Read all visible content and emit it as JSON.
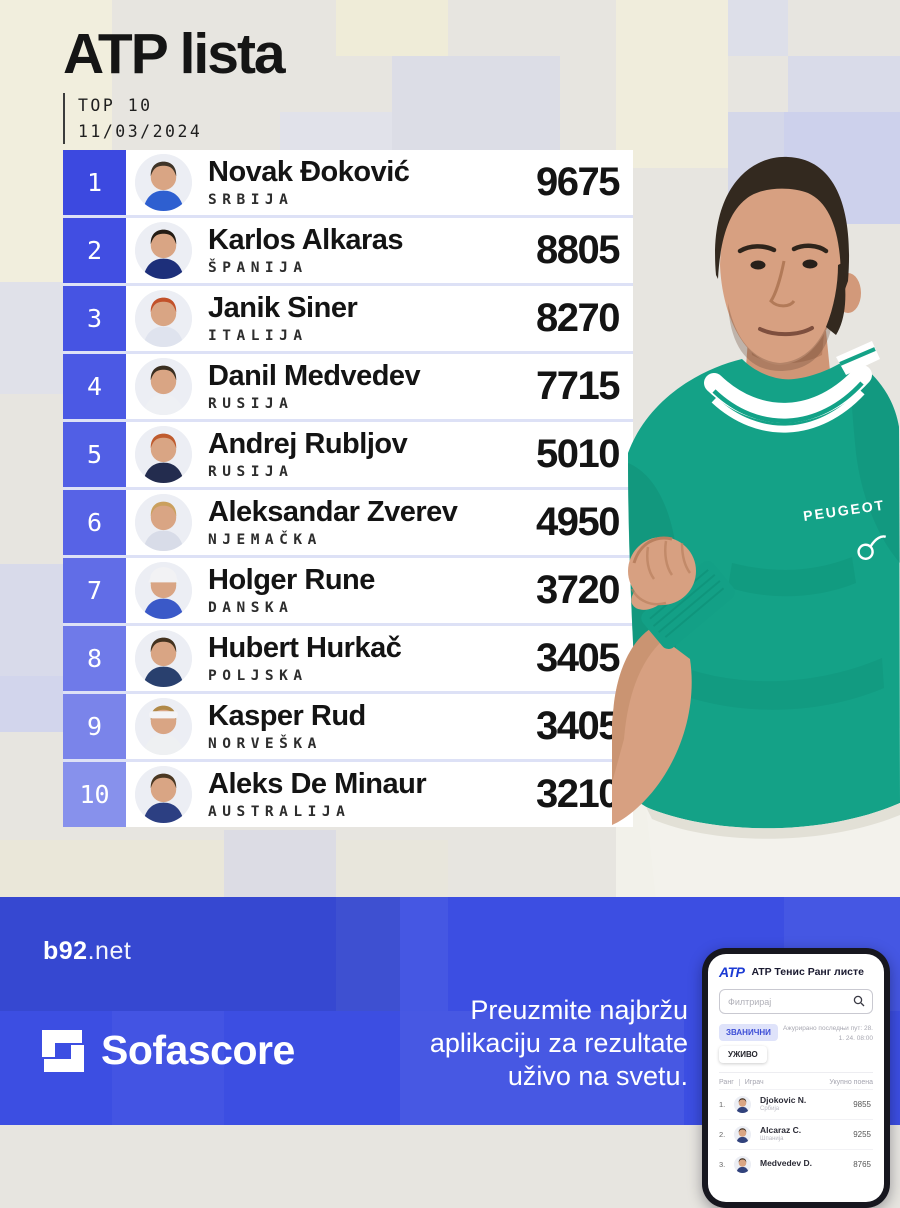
{
  "header": {
    "title": "ATP lista",
    "subtitle_line1": "TOP 10",
    "subtitle_line2": "11/03/2024"
  },
  "table": {
    "rows": [
      {
        "rank": "1",
        "name": "Novak Đoković",
        "country": "SRBIJA",
        "points": "9675",
        "rank_color": "#3c49e0",
        "avatar": {
          "hair": "#3f3428",
          "shirt": "#2e5fd0",
          "accessory": "none"
        }
      },
      {
        "rank": "2",
        "name": "Karlos Alkaras",
        "country": "ŠPANIJA",
        "points": "8805",
        "rank_color": "#414ee2",
        "avatar": {
          "hair": "#241c14",
          "shirt": "#1d2f7a",
          "accessory": "none"
        }
      },
      {
        "rank": "3",
        "name": "Janik Siner",
        "country": "ITALIJA",
        "points": "8270",
        "rank_color": "#4654e3",
        "avatar": {
          "hair": "#c2512a",
          "shirt": "#dfe3ee",
          "accessory": "none"
        }
      },
      {
        "rank": "4",
        "name": "Danil Medvedev",
        "country": "RUSIJA",
        "points": "7715",
        "rank_color": "#4b59e4",
        "avatar": {
          "hair": "#3a2e20",
          "shirt": "#eef0f4",
          "accessory": "none"
        }
      },
      {
        "rank": "5",
        "name": "Andrej Rubljov",
        "country": "RUSIJA",
        "points": "5010",
        "rank_color": "#515fe5",
        "avatar": {
          "hair": "#bf5b2e",
          "shirt": "#232c4e",
          "accessory": "none"
        }
      },
      {
        "rank": "6",
        "name": "Aleksandar Zverev",
        "country": "NJEMAČKA",
        "points": "4950",
        "rank_color": "#5763e6",
        "avatar": {
          "hair": "#caa05e",
          "shirt": "#d8dce8",
          "accessory": "none"
        }
      },
      {
        "rank": "7",
        "name": "Holger Rune",
        "country": "DANSKA",
        "points": "3720",
        "rank_color": "#616de7",
        "avatar": {
          "hair": "#c9a45c",
          "shirt": "#3a59c8",
          "accessory": "cap"
        }
      },
      {
        "rank": "8",
        "name": "Hubert Hurkač",
        "country": "POLJSKA",
        "points": "3405",
        "rank_color": "#6f7ae9",
        "avatar": {
          "hair": "#43321f",
          "shirt": "#29406e",
          "accessory": "none"
        }
      },
      {
        "rank": "9",
        "name": "Kasper Rud",
        "country": "NORVEŠKA",
        "points": "3405",
        "rank_color": "#7a84ea",
        "avatar": {
          "hair": "#b08948",
          "shirt": "#eef0f2",
          "accessory": "headband"
        }
      },
      {
        "rank": "10",
        "name": "Aleks De Minaur",
        "country": "AUSTRALIJA",
        "points": "3210",
        "rank_color": "#8791ec",
        "avatar": {
          "hair": "#4a3722",
          "shirt": "#2c3f82",
          "accessory": "none"
        }
      }
    ]
  },
  "athlete": {
    "sleeve_brand": "PEUGEOT",
    "shirt_color": "#14a287",
    "skin_color": "#d7a081",
    "hair_color": "#33291f"
  },
  "footer": {
    "b92_logo_main": "b92",
    "b92_logo_suffix": ".net",
    "sofascore_logo": "Sofascore",
    "tagline_lines": [
      "Preuzmite najbržu",
      "aplikaciju za rezultate",
      "uživo na svetu."
    ],
    "accent_blue": "#3c4ee2",
    "phone": {
      "app_logo": "ATP",
      "app_title": "ATP Тенис Ранг листе",
      "search_placeholder": "Филтрирај",
      "tab_official": "ЗВАНИЧНИ",
      "tab_live": "УЖИВО",
      "updated_line1": "Ажурирано последњи пут: 28.",
      "updated_line2": "1. 24. 08:00",
      "col_rank": "Ранг",
      "col_player": "Играч",
      "col_points": "Укупно поена",
      "rows": [
        {
          "rank": "1.",
          "name": "Djokovic N.",
          "country": "Србија",
          "points": "9855"
        },
        {
          "rank": "2.",
          "name": "Alcaraz C.",
          "country": "Шпанија",
          "points": "9255"
        },
        {
          "rank": "3.",
          "name": "Medvedev D.",
          "country": "",
          "points": "8765"
        }
      ]
    }
  }
}
